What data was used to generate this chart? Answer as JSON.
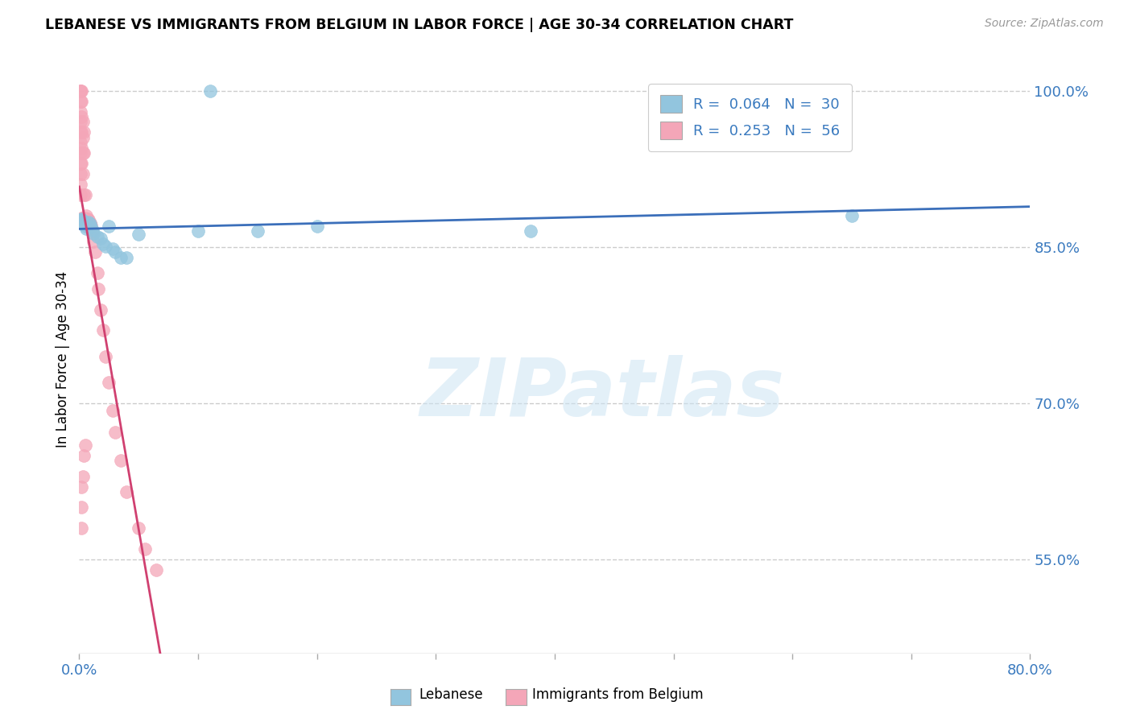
{
  "title": "LEBANESE VS IMMIGRANTS FROM BELGIUM IN LABOR FORCE | AGE 30-34 CORRELATION CHART",
  "source": "Source: ZipAtlas.com",
  "ylabel": "In Labor Force | Age 30-34",
  "xlim": [
    0.0,
    0.8
  ],
  "ylim": [
    0.46,
    1.025
  ],
  "xticks": [
    0.0,
    0.1,
    0.2,
    0.3,
    0.4,
    0.5,
    0.6,
    0.7,
    0.8
  ],
  "xticklabels": [
    "0.0%",
    "",
    "",
    "",
    "",
    "",
    "",
    "",
    "80.0%"
  ],
  "yticks": [
    0.55,
    0.7,
    0.85,
    1.0
  ],
  "yticklabels": [
    "55.0%",
    "70.0%",
    "85.0%",
    "100.0%"
  ],
  "legend_r_blue": "0.064",
  "legend_n_blue": "30",
  "legend_r_pink": "0.253",
  "legend_n_pink": "56",
  "blue_color": "#92c5de",
  "pink_color": "#f4a6b8",
  "blue_line_color": "#3b6fba",
  "pink_line_color": "#d04070",
  "watermark": "ZIPatlas",
  "blue_x": [
    0.001,
    0.002,
    0.002,
    0.003,
    0.004,
    0.004,
    0.005,
    0.006,
    0.007,
    0.008,
    0.009,
    0.01,
    0.011,
    0.012,
    0.015,
    0.018,
    0.02,
    0.022,
    0.025,
    0.028,
    0.03,
    0.035,
    0.04,
    0.05,
    0.1,
    0.11,
    0.15,
    0.2,
    0.38,
    0.65
  ],
  "blue_y": [
    0.876,
    0.877,
    0.875,
    0.875,
    0.873,
    0.872,
    0.87,
    0.868,
    0.87,
    0.874,
    0.872,
    0.869,
    0.866,
    0.863,
    0.86,
    0.858,
    0.853,
    0.851,
    0.87,
    0.848,
    0.845,
    0.84,
    0.84,
    0.862,
    0.865,
    1.0,
    0.865,
    0.87,
    0.865,
    0.88
  ],
  "pink_x": [
    0.001,
    0.001,
    0.001,
    0.001,
    0.001,
    0.001,
    0.001,
    0.001,
    0.001,
    0.001,
    0.001,
    0.001,
    0.002,
    0.002,
    0.002,
    0.002,
    0.002,
    0.002,
    0.002,
    0.003,
    0.003,
    0.003,
    0.003,
    0.004,
    0.004,
    0.004,
    0.005,
    0.005,
    0.006,
    0.007,
    0.008,
    0.009,
    0.01,
    0.01,
    0.011,
    0.012,
    0.013,
    0.015,
    0.016,
    0.018,
    0.02,
    0.022,
    0.025,
    0.028,
    0.03,
    0.035,
    0.04,
    0.05,
    0.055,
    0.065,
    0.002,
    0.002,
    0.002,
    0.003,
    0.004,
    0.005
  ],
  "pink_y": [
    1.0,
    1.0,
    0.99,
    0.98,
    0.97,
    0.96,
    0.95,
    0.94,
    0.93,
    0.92,
    0.91,
    0.9,
    1.0,
    0.99,
    0.975,
    0.96,
    0.945,
    0.93,
    0.878,
    0.97,
    0.955,
    0.94,
    0.92,
    0.96,
    0.94,
    0.9,
    0.9,
    0.878,
    0.88,
    0.877,
    0.876,
    0.873,
    0.871,
    0.868,
    0.864,
    0.855,
    0.845,
    0.825,
    0.81,
    0.79,
    0.77,
    0.745,
    0.72,
    0.693,
    0.672,
    0.645,
    0.615,
    0.58,
    0.56,
    0.54,
    0.62,
    0.6,
    0.58,
    0.63,
    0.65,
    0.66
  ]
}
